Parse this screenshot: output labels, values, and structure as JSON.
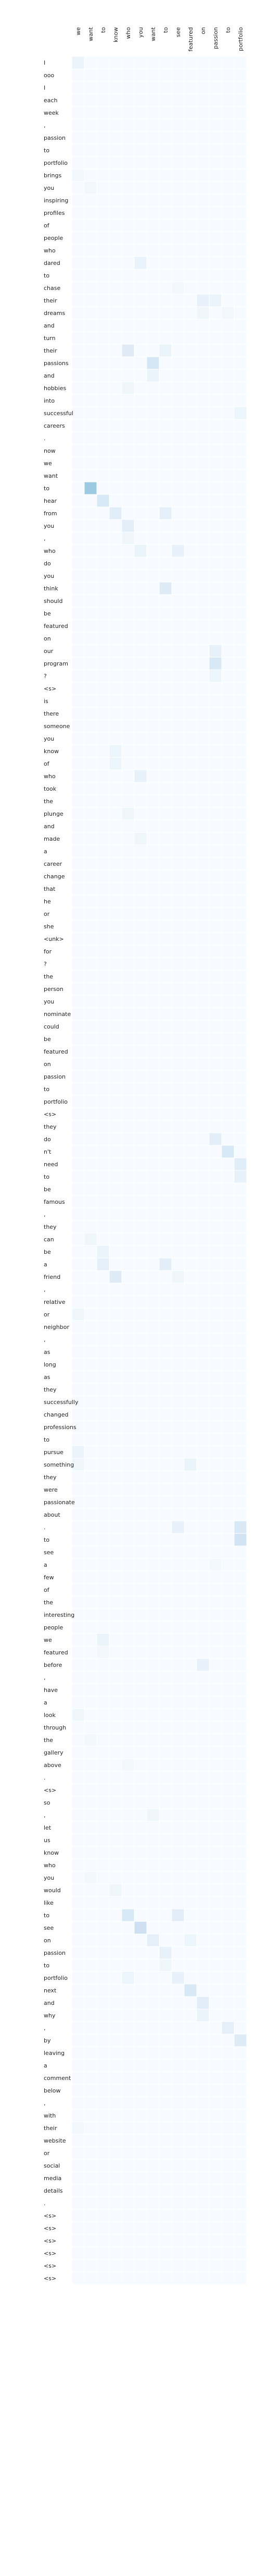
{
  "chart_data": {
    "type": "heatmap",
    "title": "",
    "xlabel": "",
    "ylabel": "",
    "colormap": [
      "#f7fbff",
      "#deebf7",
      "#c6dbef",
      "#9ecae1",
      "#6baed6"
    ],
    "x": [
      "we",
      "want",
      "to",
      "know",
      "who",
      "you",
      "want",
      "to",
      "see",
      "featured",
      "on",
      "passion",
      "to",
      "portfolio"
    ],
    "y": [
      "I",
      "ooo",
      "I",
      "each",
      "week",
      ",",
      "passion",
      "to",
      "portfolio",
      "brings",
      "you",
      "inspiring",
      "profiles",
      "of",
      "people",
      "who",
      "dared",
      "to",
      "chase",
      "their",
      "dreams",
      "and",
      "turn",
      "their",
      "passions",
      "and",
      "hobbies",
      "into",
      "successful",
      "careers",
      ".",
      "now",
      "we",
      "want",
      "to",
      "hear",
      "from",
      "you",
      ",",
      "who",
      "do",
      "you",
      "think",
      "should",
      "be",
      "featured",
      "on",
      "our",
      "program",
      "?",
      "<s>",
      "is",
      "there",
      "someone",
      "you",
      "know",
      "of",
      "who",
      "took",
      "the",
      "plunge",
      "and",
      "made",
      "a",
      "career",
      "change",
      "that",
      "he",
      "or",
      "she",
      "<unk>",
      "for",
      "?",
      "the",
      "person",
      "you",
      "nominate",
      "could",
      "be",
      "featured",
      "on",
      "passion",
      "to",
      "portfolio",
      "<s>",
      "they",
      "do",
      "n't",
      "need",
      "to",
      "be",
      "famous",
      ",",
      "they",
      "can",
      "be",
      "a",
      "friend",
      ",",
      "relative",
      "or",
      "neighbor",
      ",",
      "as",
      "long",
      "as",
      "they",
      "successfully",
      "changed",
      "professions",
      "to",
      "pursue",
      "something",
      "they",
      "were",
      "passionate",
      "about",
      ".",
      "to",
      "see",
      "a",
      "few",
      "of",
      "the",
      "interesting",
      "people",
      "we",
      "featured",
      "before",
      ",",
      "have",
      "a",
      "look",
      "through",
      "the",
      "gallery",
      "above",
      ".",
      "<s>",
      "so",
      ",",
      "let",
      "us",
      "know",
      "who",
      "you",
      "would",
      "like",
      "to",
      "see",
      "on",
      "passion",
      "to",
      "portfolio",
      "next",
      "and",
      "why",
      ",",
      "by",
      "leaving",
      "a",
      "comment",
      "below",
      ",",
      "with",
      "their",
      "website",
      "or",
      "social",
      "media",
      "details",
      ".",
      "<s>",
      "<s>",
      "<s>",
      "<s>",
      "<s>",
      "<s>"
    ],
    "highlights": [
      {
        "row": 0,
        "col": 0,
        "value": 0.12
      },
      {
        "row": 9,
        "col": 0,
        "value": 0.05
      },
      {
        "row": 10,
        "col": 1,
        "value": 0.06
      },
      {
        "row": 16,
        "col": 5,
        "value": 0.13
      },
      {
        "row": 18,
        "col": 8,
        "value": 0.05
      },
      {
        "row": 19,
        "col": 10,
        "value": 0.15
      },
      {
        "row": 19,
        "col": 11,
        "value": 0.12
      },
      {
        "row": 20,
        "col": 10,
        "value": 0.08
      },
      {
        "row": 20,
        "col": 12,
        "value": 0.06
      },
      {
        "row": 23,
        "col": 4,
        "value": 0.25
      },
      {
        "row": 23,
        "col": 7,
        "value": 0.12
      },
      {
        "row": 24,
        "col": 6,
        "value": 0.33
      },
      {
        "row": 25,
        "col": 6,
        "value": 0.12
      },
      {
        "row": 26,
        "col": 4,
        "value": 0.08
      },
      {
        "row": 28,
        "col": 13,
        "value": 0.1
      },
      {
        "row": 34,
        "col": 1,
        "value": 0.75
      },
      {
        "row": 35,
        "col": 2,
        "value": 0.3
      },
      {
        "row": 36,
        "col": 3,
        "value": 0.22
      },
      {
        "row": 36,
        "col": 7,
        "value": 0.18
      },
      {
        "row": 37,
        "col": 4,
        "value": 0.2
      },
      {
        "row": 38,
        "col": 4,
        "value": 0.08
      },
      {
        "row": 39,
        "col": 5,
        "value": 0.12
      },
      {
        "row": 39,
        "col": 8,
        "value": 0.15
      },
      {
        "row": 42,
        "col": 7,
        "value": 0.25
      },
      {
        "row": 47,
        "col": 11,
        "value": 0.15
      },
      {
        "row": 48,
        "col": 11,
        "value": 0.3
      },
      {
        "row": 49,
        "col": 11,
        "value": 0.1
      },
      {
        "row": 55,
        "col": 3,
        "value": 0.1
      },
      {
        "row": 56,
        "col": 3,
        "value": 0.1
      },
      {
        "row": 57,
        "col": 5,
        "value": 0.15
      },
      {
        "row": 60,
        "col": 4,
        "value": 0.08
      },
      {
        "row": 62,
        "col": 5,
        "value": 0.08
      },
      {
        "row": 86,
        "col": 11,
        "value": 0.2
      },
      {
        "row": 87,
        "col": 12,
        "value": 0.3
      },
      {
        "row": 88,
        "col": 13,
        "value": 0.22
      },
      {
        "row": 89,
        "col": 13,
        "value": 0.15
      },
      {
        "row": 94,
        "col": 1,
        "value": 0.08
      },
      {
        "row": 95,
        "col": 2,
        "value": 0.12
      },
      {
        "row": 96,
        "col": 2,
        "value": 0.18
      },
      {
        "row": 96,
        "col": 7,
        "value": 0.2
      },
      {
        "row": 97,
        "col": 3,
        "value": 0.25
      },
      {
        "row": 97,
        "col": 8,
        "value": 0.08
      },
      {
        "row": 100,
        "col": 0,
        "value": 0.08
      },
      {
        "row": 111,
        "col": 0,
        "value": 0.12
      },
      {
        "row": 112,
        "col": 0,
        "value": 0.08
      },
      {
        "row": 112,
        "col": 9,
        "value": 0.12
      },
      {
        "row": 117,
        "col": 8,
        "value": 0.15
      },
      {
        "row": 117,
        "col": 13,
        "value": 0.3
      },
      {
        "row": 118,
        "col": 13,
        "value": 0.38
      },
      {
        "row": 120,
        "col": 11,
        "value": 0.05
      },
      {
        "row": 126,
        "col": 2,
        "value": 0.12
      },
      {
        "row": 127,
        "col": 2,
        "value": 0.05
      },
      {
        "row": 128,
        "col": 10,
        "value": 0.15
      },
      {
        "row": 132,
        "col": 0,
        "value": 0.08
      },
      {
        "row": 134,
        "col": 1,
        "value": 0.05
      },
      {
        "row": 136,
        "col": 4,
        "value": 0.05
      },
      {
        "row": 140,
        "col": 6,
        "value": 0.08
      },
      {
        "row": 145,
        "col": 1,
        "value": 0.05
      },
      {
        "row": 146,
        "col": 3,
        "value": 0.08
      },
      {
        "row": 148,
        "col": 4,
        "value": 0.3
      },
      {
        "row": 148,
        "col": 8,
        "value": 0.22
      },
      {
        "row": 149,
        "col": 5,
        "value": 0.42
      },
      {
        "row": 150,
        "col": 6,
        "value": 0.18
      },
      {
        "row": 150,
        "col": 9,
        "value": 0.1
      },
      {
        "row": 151,
        "col": 7,
        "value": 0.15
      },
      {
        "row": 152,
        "col": 7,
        "value": 0.08
      },
      {
        "row": 153,
        "col": 4,
        "value": 0.1
      },
      {
        "row": 153,
        "col": 8,
        "value": 0.15
      },
      {
        "row": 154,
        "col": 9,
        "value": 0.3
      },
      {
        "row": 155,
        "col": 10,
        "value": 0.22
      },
      {
        "row": 156,
        "col": 10,
        "value": 0.12
      },
      {
        "row": 157,
        "col": 12,
        "value": 0.18
      },
      {
        "row": 158,
        "col": 13,
        "value": 0.25
      },
      {
        "row": 165,
        "col": 0,
        "value": 0.05
      }
    ]
  }
}
